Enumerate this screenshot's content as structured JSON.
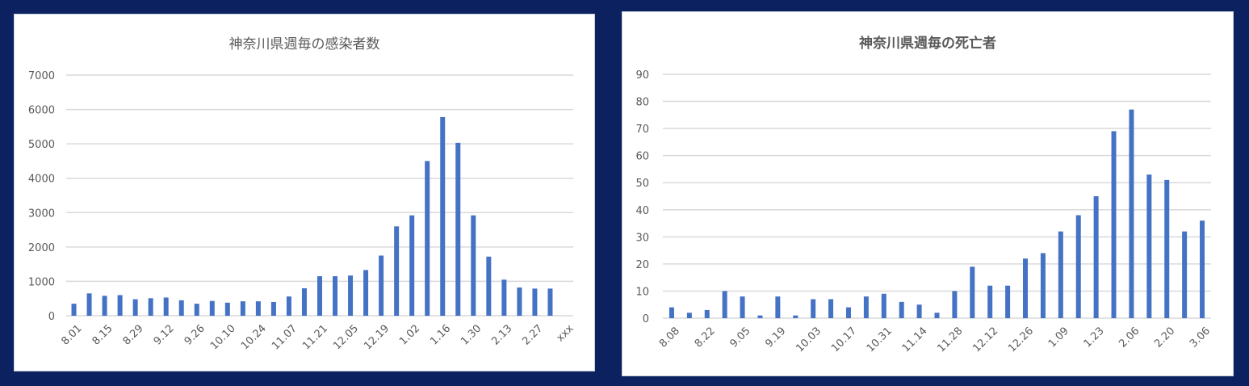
{
  "chart_data": [
    {
      "type": "bar",
      "title": "神奈川県週毎の感染者数",
      "xlabel": "",
      "ylabel": "",
      "ylim": [
        0,
        7000
      ],
      "yticks": [
        0,
        1000,
        2000,
        3000,
        4000,
        5000,
        6000,
        7000
      ],
      "grid": true,
      "bar_color": "#4472c4",
      "categories": [
        "8.01",
        "8.08",
        "8.15",
        "8.22",
        "8.29",
        "9.05",
        "9.12",
        "9.19",
        "9.26",
        "10.03",
        "10.10",
        "10.17",
        "10.24",
        "10.31",
        "11.07",
        "11.14",
        "11.21",
        "11.28",
        "12.05",
        "12.12",
        "12.19",
        "12.26",
        "1.02",
        "1.09",
        "1.16",
        "1.23",
        "1.30",
        "2.06",
        "2.13",
        "2.20",
        "2.27",
        "3.06",
        "xxx"
      ],
      "tick_labels": [
        "8.01",
        "8.15",
        "8.29",
        "9.12",
        "9.26",
        "10.10",
        "10.24",
        "11.07",
        "11.21",
        "12.05",
        "12.19",
        "1.02",
        "1.16",
        "1.30",
        "2.13",
        "2.27",
        "xxx"
      ],
      "values": [
        350,
        650,
        580,
        600,
        480,
        510,
        530,
        450,
        350,
        430,
        380,
        420,
        420,
        400,
        560,
        800,
        1150,
        1150,
        1170,
        1330,
        1750,
        2600,
        2920,
        4500,
        5780,
        5030,
        2920,
        1720,
        1050,
        820,
        790,
        790,
        null
      ]
    },
    {
      "type": "bar",
      "title": "神奈川県週毎の死亡者",
      "xlabel": "",
      "ylabel": "",
      "ylim": [
        0,
        90
      ],
      "yticks": [
        0,
        10,
        20,
        30,
        40,
        50,
        60,
        70,
        80,
        90
      ],
      "grid": true,
      "bar_color": "#4472c4",
      "categories": [
        "8.08",
        "8.15",
        "8.22",
        "8.29",
        "9.05",
        "9.12",
        "9.19",
        "9.26",
        "10.03",
        "10.10",
        "10.17",
        "10.24",
        "10.31",
        "11.07",
        "11.14",
        "11.21",
        "11.28",
        "12.05",
        "12.12",
        "12.19",
        "12.26",
        "1.02",
        "1.09",
        "1.16",
        "1.23",
        "1.30",
        "2.06",
        "2.13",
        "2.20",
        "2.27",
        "3.06"
      ],
      "tick_labels": [
        "8.08",
        "8.22",
        "9.05",
        "9.19",
        "10.03",
        "10.17",
        "10.31",
        "11.14",
        "11.28",
        "12.12",
        "12.26",
        "1.09",
        "1.23",
        "2.06",
        "2.20",
        "3.06"
      ],
      "values": [
        4,
        2,
        3,
        10,
        8,
        1,
        8,
        1,
        7,
        7,
        4,
        8,
        9,
        6,
        5,
        2,
        10,
        19,
        12,
        12,
        22,
        24,
        32,
        38,
        45,
        69,
        77,
        53,
        51,
        32,
        36
      ]
    }
  ]
}
